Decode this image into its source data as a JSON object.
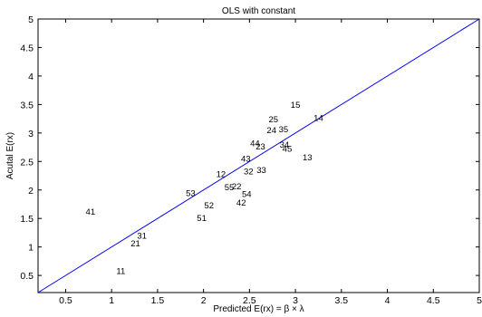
{
  "chart_data": {
    "type": "scatter",
    "title": "OLS with constant",
    "xlabel": "Predicted E(rx) = β × λ",
    "ylabel": "Acutal E(rx)",
    "xlim": [
      0.2,
      5
    ],
    "ylim": [
      0.2,
      5
    ],
    "x_ticks": [
      0.5,
      1,
      1.5,
      2,
      2.5,
      3,
      3.5,
      4,
      4.5,
      5
    ],
    "y_ticks": [
      0.5,
      1,
      1.5,
      2,
      2.5,
      3,
      3.5,
      4,
      4.5,
      5
    ],
    "x_tick_labels": [
      "0.5",
      "1",
      "1.5",
      "2",
      "2.5",
      "3",
      "3.5",
      "4",
      "4.5",
      "5"
    ],
    "y_tick_labels": [
      "0.5",
      "1",
      "1.5",
      "2",
      "2.5",
      "3",
      "3.5",
      "4",
      "4.5",
      "5"
    ],
    "grid": false,
    "points": [
      {
        "label": "11",
        "x": 1.1,
        "y": 0.58
      },
      {
        "label": "21",
        "x": 1.26,
        "y": 1.07
      },
      {
        "label": "31",
        "x": 1.33,
        "y": 1.2
      },
      {
        "label": "41",
        "x": 0.77,
        "y": 1.62
      },
      {
        "label": "51",
        "x": 1.98,
        "y": 1.51
      },
      {
        "label": "52",
        "x": 2.06,
        "y": 1.73
      },
      {
        "label": "53",
        "x": 1.86,
        "y": 1.95
      },
      {
        "label": "55",
        "x": 2.28,
        "y": 2.05
      },
      {
        "label": "22",
        "x": 2.36,
        "y": 2.07
      },
      {
        "label": "12",
        "x": 2.19,
        "y": 2.28
      },
      {
        "label": "42",
        "x": 2.41,
        "y": 1.78
      },
      {
        "label": "54",
        "x": 2.47,
        "y": 1.93
      },
      {
        "label": "32",
        "x": 2.49,
        "y": 2.33
      },
      {
        "label": "33",
        "x": 2.63,
        "y": 2.35
      },
      {
        "label": "43",
        "x": 2.46,
        "y": 2.55
      },
      {
        "label": "44",
        "x": 2.56,
        "y": 2.82
      },
      {
        "label": "23",
        "x": 2.62,
        "y": 2.77
      },
      {
        "label": "34",
        "x": 2.88,
        "y": 2.8
      },
      {
        "label": "45",
        "x": 2.91,
        "y": 2.73
      },
      {
        "label": "24",
        "x": 2.74,
        "y": 3.05
      },
      {
        "label": "25",
        "x": 2.76,
        "y": 3.24
      },
      {
        "label": "35",
        "x": 2.87,
        "y": 3.07
      },
      {
        "label": "15",
        "x": 3.0,
        "y": 3.5
      },
      {
        "label": "14",
        "x": 3.25,
        "y": 3.27
      },
      {
        "label": "13",
        "x": 3.13,
        "y": 2.58
      }
    ],
    "reference_line": {
      "from": [
        0.2,
        0.2
      ],
      "to": [
        5,
        5
      ],
      "color": "#0000ff"
    },
    "colors": {
      "axis": "#000000",
      "line": "#0000ff",
      "text": "#000000"
    }
  }
}
